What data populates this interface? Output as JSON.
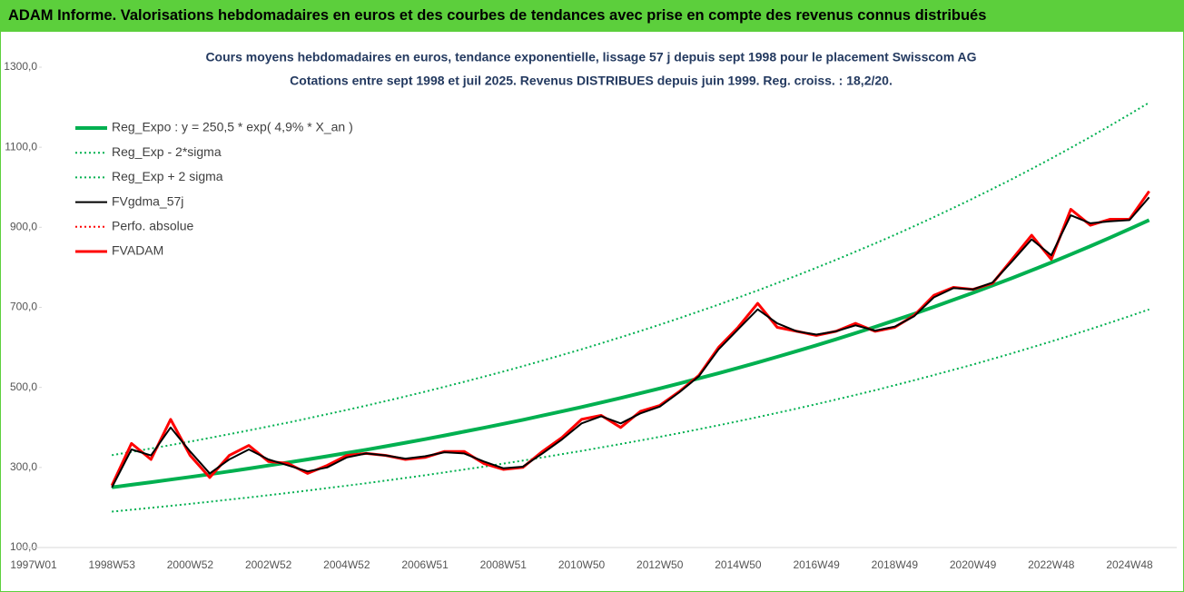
{
  "header": {
    "title": "ADAM Informe. Valorisations hebdomadaires en euros et des courbes de tendances avec prise en compte des revenus connus distribués"
  },
  "chart_data": {
    "type": "line",
    "title": "Cours moyens hebdomadaires en euros, tendance exponentielle, lissage 57 j depuis sept 1998 pour le placement Swisscom AG",
    "subtitle": "Cotations entre sept 1998 et juil 2025. Revenus DISTRIBUES depuis juin 1999. Reg. croiss. : 18,2/20.",
    "categories": [
      "1997W01",
      null,
      null,
      null,
      "1998W53",
      null,
      null,
      null,
      "2000W52",
      null,
      null,
      null,
      "2002W52",
      null,
      null,
      null,
      "2004W52",
      null,
      null,
      null,
      "2006W51",
      null,
      null,
      null,
      "2008W51",
      null,
      null,
      null,
      "2010W50",
      null,
      null,
      null,
      "2012W50",
      null,
      null,
      null,
      "2014W50",
      null,
      null,
      null,
      "2016W49",
      null,
      null,
      null,
      "2018W49",
      null,
      null,
      null,
      "2020W49",
      null,
      null,
      null,
      "2022W48",
      null,
      null,
      null,
      "2024W48",
      null
    ],
    "ylim": [
      100,
      1300
    ],
    "yticks": [
      {
        "value": 100,
        "label": "100,0"
      },
      {
        "value": 300,
        "label": "300,0"
      },
      {
        "value": 500,
        "label": "500,0"
      },
      {
        "value": 700,
        "label": "700,0"
      },
      {
        "value": 900,
        "label": "900,0"
      },
      {
        "value": 1100,
        "label": "1100,0"
      },
      {
        "value": 1300,
        "label": "1300,0"
      }
    ],
    "grid": false,
    "legend": "upper left",
    "series": [
      {
        "name": "Reg_Expo : y = 250,5 * exp( 4,9% *  X_an )",
        "color": "#00b050",
        "style": "solid",
        "values": [
          null,
          null,
          null,
          null,
          250.5,
          256.7,
          263.1,
          269.6,
          276.3,
          283.1,
          290.2,
          297.4,
          304.8,
          312.3,
          320.1,
          328.0,
          336.1,
          344.4,
          353.0,
          361.7,
          370.7,
          379.9,
          389.4,
          399.0,
          408.9,
          419.0,
          429.5,
          440.1,
          451.0,
          462.2,
          473.7,
          485.4,
          497.5,
          509.8,
          522.5,
          535.4,
          548.7,
          562.3,
          576.3,
          590.6,
          605.2,
          620.2,
          635.6,
          651.3,
          667.5,
          684.0,
          701.1,
          718.5,
          736.3,
          754.6,
          773.2,
          792.4,
          812.1,
          832.2,
          852.9,
          874.0,
          895.7,
          917.9
        ]
      },
      {
        "name": "Reg_Exp - 2*sigma",
        "color": "#00b050",
        "style": "dotted",
        "values": [
          null,
          null,
          null,
          null,
          189.6,
          194.3,
          199.2,
          204.1,
          209.2,
          214.3,
          219.7,
          225.1,
          230.7,
          236.4,
          242.3,
          248.3,
          254.4,
          260.7,
          267.2,
          273.8,
          280.6,
          287.6,
          294.8,
          302.0,
          309.5,
          317.2,
          325.1,
          333.2,
          341.4,
          349.9,
          358.6,
          367.4,
          376.6,
          385.9,
          395.5,
          405.3,
          415.4,
          425.7,
          436.3,
          447.1,
          458.1,
          469.5,
          481.1,
          493.0,
          505.3,
          517.8,
          530.7,
          543.9,
          557.2,
          571.2,
          585.3,
          599.9,
          614.8,
          630.0,
          645.6,
          661.6,
          678.0,
          694.8
        ]
      },
      {
        "name": "Reg_Exp + 2 sigma",
        "color": "#00b050",
        "style": "dotted",
        "values": [
          null,
          null,
          null,
          null,
          330.7,
          338.8,
          347.3,
          355.9,
          364.7,
          373.7,
          383.1,
          392.6,
          402.3,
          412.2,
          422.5,
          433.0,
          443.7,
          454.6,
          466.0,
          477.4,
          489.3,
          501.5,
          514.0,
          526.7,
          539.7,
          553.1,
          566.9,
          580.9,
          595.3,
          610.1,
          625.3,
          640.7,
          656.7,
          672.9,
          689.7,
          706.7,
          724.3,
          742.2,
          760.7,
          779.6,
          798.9,
          818.7,
          839.0,
          859.7,
          881.1,
          902.9,
          925.5,
          948.4,
          971.9,
          996.1,
          1020.6,
          1046.0,
          1072.0,
          1098.5,
          1125.8,
          1153.7,
          1182.3,
          1211.6
        ]
      },
      {
        "name": "FVgdma_57j",
        "color": "#000000",
        "style": "solid",
        "values": [
          null,
          null,
          null,
          null,
          250,
          345,
          330,
          400,
          340,
          285,
          320,
          345,
          320,
          305,
          290,
          300,
          325,
          335,
          330,
          322,
          328,
          338,
          335,
          315,
          298,
          302,
          335,
          370,
          410,
          428,
          410,
          435,
          452,
          488,
          528,
          595,
          645,
          695,
          660,
          640,
          632,
          640,
          655,
          642,
          652,
          678,
          725,
          748,
          745,
          762,
          815,
          870,
          830,
          930,
          910,
          915,
          918,
          975
        ]
      },
      {
        "name": "Perfo. absolue",
        "color": "#ff0000",
        "style": "dotted",
        "values": [
          null,
          null,
          null,
          null,
          255,
          360,
          320,
          420,
          330,
          275,
          330,
          355,
          315,
          310,
          285,
          305,
          330,
          335,
          330,
          320,
          325,
          340,
          340,
          310,
          295,
          300,
          340,
          375,
          420,
          430,
          400,
          440,
          455,
          490,
          530,
          600,
          650,
          710,
          650,
          640,
          630,
          640,
          660,
          640,
          650,
          680,
          730,
          750,
          745,
          760,
          820,
          880,
          820,
          945,
          905,
          920,
          920,
          990
        ]
      },
      {
        "name": "FVADAM",
        "color": "#ff0000",
        "style": "solid",
        "values": [
          null,
          null,
          null,
          null,
          255,
          360,
          320,
          420,
          330,
          275,
          330,
          355,
          315,
          310,
          285,
          305,
          330,
          335,
          330,
          320,
          325,
          340,
          340,
          310,
          295,
          300,
          340,
          375,
          420,
          430,
          400,
          440,
          455,
          490,
          530,
          600,
          650,
          710,
          650,
          640,
          630,
          640,
          660,
          640,
          650,
          680,
          730,
          750,
          745,
          760,
          820,
          880,
          820,
          945,
          905,
          920,
          920,
          990
        ]
      }
    ]
  }
}
